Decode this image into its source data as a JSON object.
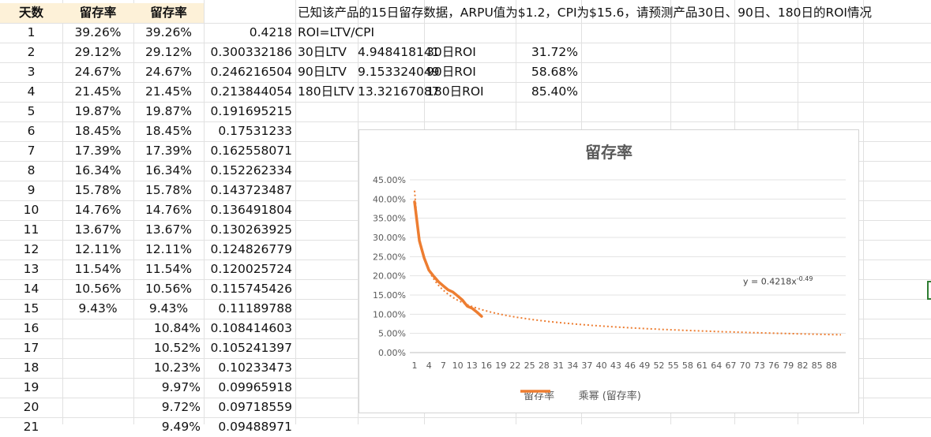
{
  "sheet": {
    "headers": [
      "天数",
      "留存率",
      "留存率"
    ],
    "question": "已知该产品的15日留存数据，ARPU值为$1.2，CPI为$15.6，请预测产品30日、90日、180日的ROI情况",
    "formula": "ROI=LTV/CPI",
    "rows": [
      {
        "day": "1",
        "a": "39.26%",
        "b": "39.26%",
        "d": "0.4218"
      },
      {
        "day": "2",
        "a": "29.12%",
        "b": "29.12%",
        "d": "0.300332186"
      },
      {
        "day": "3",
        "a": "24.67%",
        "b": "24.67%",
        "d": "0.246216504"
      },
      {
        "day": "4",
        "a": "21.45%",
        "b": "21.45%",
        "d": "0.213844054"
      },
      {
        "day": "5",
        "a": "19.87%",
        "b": "19.87%",
        "d": "0.191695215"
      },
      {
        "day": "6",
        "a": "18.45%",
        "b": "18.45%",
        "d": "0.17531233"
      },
      {
        "day": "7",
        "a": "17.39%",
        "b": "17.39%",
        "d": "0.162558071"
      },
      {
        "day": "8",
        "a": "16.34%",
        "b": "16.34%",
        "d": "0.152262334"
      },
      {
        "day": "9",
        "a": "15.78%",
        "b": "15.78%",
        "d": "0.143723487"
      },
      {
        "day": "10",
        "a": "14.76%",
        "b": "14.76%",
        "d": "0.136491804"
      },
      {
        "day": "11",
        "a": "13.67%",
        "b": "13.67%",
        "d": "0.130263925"
      },
      {
        "day": "12",
        "a": "12.11%",
        "b": "12.11%",
        "d": "0.124826779"
      },
      {
        "day": "13",
        "a": "11.54%",
        "b": "11.54%",
        "d": "0.120025724"
      },
      {
        "day": "14",
        "a": "10.56%",
        "b": "10.56%",
        "d": "0.115745426"
      },
      {
        "day": "15",
        "a": "9.43%",
        "b": "9.43%",
        "d": "0.11189788"
      },
      {
        "day": "16",
        "a": "",
        "c": "10.84%",
        "d": "0.108414603"
      },
      {
        "day": "17",
        "a": "",
        "c": "10.52%",
        "d": "0.105241397"
      },
      {
        "day": "18",
        "a": "",
        "c": "10.23%",
        "d": "0.10233473"
      },
      {
        "day": "19",
        "a": "",
        "c": "9.97%",
        "d": "0.09965918"
      },
      {
        "day": "20",
        "a": "",
        "c": "9.72%",
        "d": "0.09718559"
      },
      {
        "day": "21",
        "a": "",
        "c": "9.49%",
        "d": "0.09488971"
      }
    ],
    "ltv": [
      {
        "label": "30日LTV",
        "value": "4.948418141",
        "roi_label": "30日ROI",
        "roi": "31.72%"
      },
      {
        "label": "90日LTV",
        "value": "9.153324049",
        "roi_label": "90日ROI",
        "roi": "58.68%"
      },
      {
        "label": "180日LTV",
        "value": "13.32167087",
        "roi_label": "180日ROI",
        "roi": "85.40%"
      }
    ]
  },
  "chart_data": {
    "type": "line",
    "title": "留存率",
    "xlabel": "",
    "ylabel": "",
    "ylim": [
      0,
      0.45
    ],
    "xlim": [
      1,
      90
    ],
    "x_tick_labels": [
      "1",
      "4",
      "7",
      "10",
      "13",
      "16",
      "19",
      "22",
      "25",
      "28",
      "31",
      "34",
      "37",
      "40",
      "43",
      "46",
      "49",
      "52",
      "55",
      "58",
      "61",
      "64",
      "67",
      "70",
      "73",
      "76",
      "79",
      "82",
      "85",
      "88"
    ],
    "y_tick_labels": [
      "0.00%",
      "5.00%",
      "10.00%",
      "15.00%",
      "20.00%",
      "25.00%",
      "30.00%",
      "35.00%",
      "40.00%",
      "45.00%"
    ],
    "grid": true,
    "legend_position": "bottom",
    "series": [
      {
        "name": "留存率",
        "style": "solid",
        "color": "#ed7d31",
        "x": [
          1,
          2,
          3,
          4,
          5,
          6,
          7,
          8,
          9,
          10,
          11,
          12,
          13,
          14,
          15
        ],
        "values": [
          0.3926,
          0.2912,
          0.2467,
          0.2145,
          0.1987,
          0.1845,
          0.1739,
          0.1634,
          0.1578,
          0.1476,
          0.1367,
          0.1211,
          0.1154,
          0.1056,
          0.0943
        ]
      },
      {
        "name": "乘幂 (留存率)",
        "style": "dotted",
        "color": "#ed7d31",
        "trendline": {
          "kind": "power",
          "a": 0.4218,
          "b": -0.49
        }
      }
    ],
    "annotation": {
      "text": "y = 0.4218x",
      "exponent": "-0.49"
    }
  }
}
